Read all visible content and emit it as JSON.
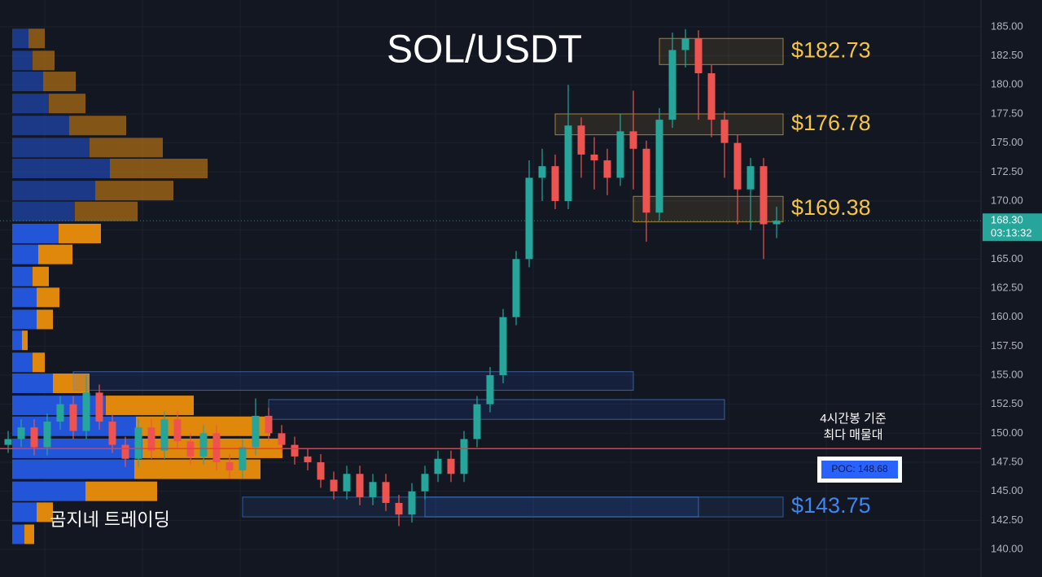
{
  "chart_data": {
    "type": "candlestick",
    "title": "SOL/USDT",
    "watermark": "곰지네 트레이딩",
    "ylim": [
      137.62,
      187.31
    ],
    "yticks": [
      {
        "value": 140,
        "label": "140.00"
      },
      {
        "value": 142.5,
        "label": "142.50"
      },
      {
        "value": 145,
        "label": "145.00"
      },
      {
        "value": 147.5,
        "label": "147.50"
      },
      {
        "value": 150,
        "label": "150.00"
      },
      {
        "value": 152.5,
        "label": "152.50"
      },
      {
        "value": 155,
        "label": "155.00"
      },
      {
        "value": 157.5,
        "label": "157.50"
      },
      {
        "value": 160,
        "label": "160.00"
      },
      {
        "value": 162.5,
        "label": "162.50"
      },
      {
        "value": 165,
        "label": "165.00"
      },
      {
        "value": 167.5,
        "label": "167.50"
      },
      {
        "value": 170,
        "label": "170.00"
      },
      {
        "value": 172.5,
        "label": "172.50"
      },
      {
        "value": 175,
        "label": "175.00"
      },
      {
        "value": 177.5,
        "label": "177.50"
      },
      {
        "value": 180,
        "label": "180.00"
      },
      {
        "value": 182.5,
        "label": "182.50"
      },
      {
        "value": 185,
        "label": "185.00"
      }
    ],
    "grid": true,
    "up_color": "#26a69a",
    "down_color": "#ef5350",
    "open": [
      149.0,
      149.5,
      150.5,
      148.8,
      151.0,
      152.5,
      150.2,
      153.5,
      151.0,
      149.0,
      147.8,
      150.5,
      148.5,
      151.2,
      149.3,
      148.0,
      150.0,
      147.5,
      146.8,
      148.8,
      151.5,
      150.0,
      149.0,
      148.0,
      147.5,
      146.0,
      145.0,
      146.5,
      144.5,
      145.8,
      144.0,
      143.0,
      145.0,
      146.5,
      147.8,
      146.5,
      149.5,
      152.5,
      155.0,
      160.0,
      165.0,
      172.0,
      173.0,
      170.0,
      176.5,
      174.0,
      173.5,
      172.0,
      176.0,
      174.5,
      169.0,
      177.0,
      183.0,
      184.0,
      181.0,
      177.0,
      175.0,
      171.0,
      173.0,
      168.0
    ],
    "high": [
      150.2,
      151.2,
      151.2,
      151.7,
      153.2,
      153.2,
      155.0,
      154.2,
      151.7,
      149.7,
      151.2,
      151.2,
      151.9,
      151.9,
      150.0,
      150.7,
      150.7,
      148.2,
      149.5,
      153.0,
      152.2,
      150.7,
      149.7,
      148.7,
      148.2,
      146.7,
      147.2,
      147.2,
      146.5,
      146.5,
      144.7,
      145.7,
      147.2,
      148.5,
      148.5,
      150.2,
      153.2,
      155.7,
      160.7,
      165.7,
      173.5,
      174.5,
      174.0,
      180.0,
      177.2,
      175.5,
      174.5,
      177.5,
      179.5,
      175.2,
      178.0,
      184.5,
      184.8,
      184.7,
      181.7,
      177.7,
      175.7,
      173.7,
      173.7,
      169.5
    ],
    "low": [
      148.3,
      148.8,
      148.1,
      148.1,
      150.3,
      149.5,
      149.5,
      150.3,
      148.3,
      147.1,
      147.1,
      147.8,
      147.8,
      148.6,
      147.3,
      147.3,
      146.8,
      146.1,
      146.1,
      148.1,
      149.3,
      148.3,
      147.3,
      146.8,
      145.3,
      144.3,
      144.3,
      143.8,
      143.8,
      143.3,
      142.0,
      142.3,
      144.3,
      145.8,
      145.8,
      145.8,
      148.8,
      151.8,
      154.3,
      159.3,
      164.3,
      170.0,
      169.3,
      169.3,
      172.0,
      171.0,
      170.5,
      171.3,
      171.0,
      166.5,
      168.3,
      176.3,
      181.5,
      177.0,
      175.5,
      172.0,
      168.0,
      167.5,
      165.0,
      166.8
    ],
    "close": [
      149.5,
      150.5,
      148.8,
      151.0,
      152.5,
      150.2,
      153.5,
      151.0,
      149.0,
      147.8,
      150.5,
      148.5,
      151.2,
      149.3,
      148.0,
      150.0,
      147.5,
      146.8,
      148.8,
      151.5,
      150.0,
      149.0,
      148.0,
      147.5,
      146.0,
      145.0,
      146.5,
      144.5,
      145.8,
      144.0,
      143.0,
      145.0,
      146.5,
      147.8,
      146.5,
      149.5,
      152.5,
      155.0,
      160.0,
      165.0,
      172.0,
      173.0,
      170.0,
      176.5,
      174.0,
      173.5,
      172.0,
      176.0,
      174.5,
      169.0,
      177.0,
      183.0,
      184.0,
      181.0,
      177.0,
      175.0,
      171.0,
      173.0,
      168.0,
      168.3
    ],
    "last_price": {
      "value": 168.3,
      "label": "168.30",
      "countdown": "03:13:32",
      "color": "#26a69a"
    },
    "poc": {
      "value": 148.68,
      "label": "POC: 148.68",
      "color": "#f23645",
      "note": [
        "4시간봉 기준",
        "최다 매물대"
      ]
    },
    "volume_profile": {
      "up_color": "#2355d8",
      "down_color": "#e0880c",
      "price": [
        184.0,
        182.1,
        180.3,
        178.4,
        176.5,
        174.6,
        172.8,
        170.9,
        169.1,
        167.2,
        165.4,
        163.5,
        161.7,
        159.8,
        158.0,
        156.1,
        154.3,
        152.4,
        150.6,
        148.7,
        146.9,
        145.0,
        143.2,
        141.3
      ],
      "up": [
        20,
        25,
        38,
        45,
        70,
        95,
        120,
        102,
        77,
        57,
        32,
        25,
        30,
        30,
        12,
        25,
        50,
        115,
        152,
        160,
        150,
        90,
        30,
        15
      ],
      "down": [
        20,
        27,
        40,
        45,
        70,
        90,
        120,
        96,
        77,
        52,
        42,
        20,
        28,
        20,
        7,
        15,
        45,
        108,
        165,
        172,
        155,
        88,
        20,
        12
      ]
    },
    "zones": [
      {
        "label": "$182.73",
        "value": 182.73,
        "top": 184.0,
        "bottom": 181.75,
        "start": 50,
        "color": "#f5c542"
      },
      {
        "label": "$176.78",
        "value": 176.78,
        "top": 177.5,
        "bottom": 175.7,
        "start": 42,
        "color": "#f5c542"
      },
      {
        "label": "$169.38",
        "value": 169.38,
        "top": 170.4,
        "bottom": 168.2,
        "start": 48,
        "color": "#f5c542"
      },
      {
        "label": "$143.75",
        "value": 143.75,
        "top": 144.5,
        "bottom": 142.8,
        "start": 18,
        "color": "#3d86f0"
      }
    ],
    "boxes": [
      {
        "top": 155.3,
        "bottom": 153.7,
        "start": 5,
        "end": 48
      },
      {
        "top": 152.9,
        "bottom": 151.2,
        "start": 20,
        "end": 55
      },
      {
        "top": 144.5,
        "bottom": 142.8,
        "start": 32,
        "end": 53
      }
    ]
  }
}
